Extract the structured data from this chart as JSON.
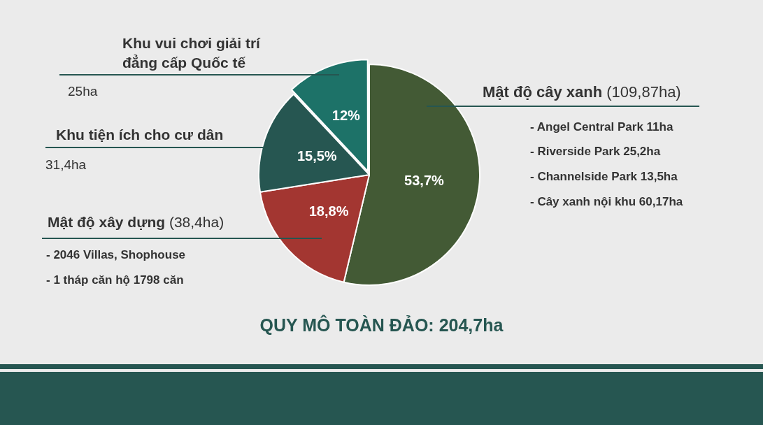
{
  "chart_data": {
    "type": "pie",
    "title": "QUY MÔ TOÀN ĐẢO: 204,7ha",
    "categories": [
      "Mật độ cây xanh",
      "Mật độ xây dựng",
      "Khu tiện ích cho cư dân",
      "Khu vui chơi giải trí đẳng cấp Quốc tế"
    ],
    "values": [
      53.7,
      18.8,
      15.5,
      12
    ],
    "colors": [
      "#435a35",
      "#a33631",
      "#265651",
      "#1d7268"
    ],
    "value_labels": [
      "53,7%",
      "18,8%",
      "15,5%",
      "12%"
    ],
    "annotations": [
      "(109,87ha)",
      "- Angel Central Park 11ha",
      "- Riverside Park 25,2ha",
      "- Channelside Park 13,5ha",
      "- Cây xanh nội khu 60,17ha",
      "(38,4ha)",
      "- 2046 Villas, Shophouse",
      "- 1 tháp căn hộ 1798 căn",
      "31,4ha",
      "25ha"
    ],
    "legend": false
  }
}
